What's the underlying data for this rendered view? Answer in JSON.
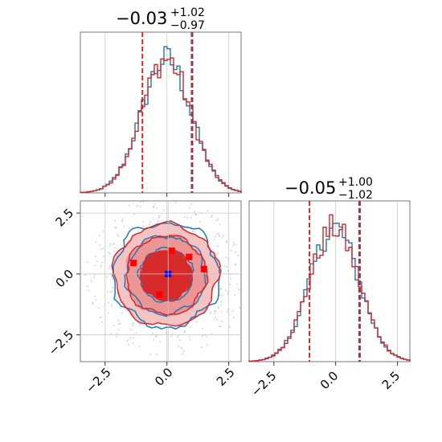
{
  "chart_data": {
    "type": "corner",
    "colors": {
      "series_a": "#1f77b4",
      "series_b": "#d62728",
      "grid": "#c8c8c8",
      "axes": "#777777",
      "median_line": "#8a3a52"
    },
    "panels": [
      {
        "id": "hist-x",
        "type": "histogram",
        "title": {
          "main": "−0.03",
          "sup": "+1.02",
          "sub": "−0.97"
        },
        "xlim": [
          -3.5,
          3.0
        ],
        "quantile_lines_red": [
          -0.99,
          1.0
        ],
        "quantile_lines_median": [
          1.0
        ],
        "grid_x": [
          -2.5,
          0.0,
          2.5
        ],
        "series": [
          {
            "name": "",
            "color": "#1f77b4",
            "shape": "gaussian",
            "mu": -0.03,
            "sigma": 1.0
          },
          {
            "name": "",
            "color": "#d62728",
            "shape": "gaussian",
            "mu": -0.03,
            "sigma": 1.0
          }
        ]
      },
      {
        "id": "scatter-xy",
        "type": "contour",
        "xlim": [
          -3.5,
          3.0
        ],
        "ylim": [
          -3.6,
          3.0
        ],
        "x_ticks": [
          "−2.5",
          "0.0",
          "2.5"
        ],
        "y_ticks": [
          "2.5",
          "0.0",
          "−2.5"
        ],
        "x_tick_values": [
          -2.5,
          0.0,
          2.5
        ],
        "y_tick_values": [
          2.5,
          0.0,
          -2.5
        ],
        "levels_sigma": [
          1.0,
          1.6,
          2.1
        ],
        "red_markers": [
          [
            -1.35,
            0.45
          ],
          [
            0.2,
            0.95
          ],
          [
            0.9,
            0.7
          ],
          [
            1.5,
            0.2
          ],
          [
            -0.3,
            -0.85
          ]
        ],
        "blue_markers": [
          [
            0.05,
            0.0
          ]
        ]
      },
      {
        "id": "hist-y",
        "type": "histogram",
        "title": {
          "main": "−0.05",
          "sup": "+1.00",
          "sub": "−1.02"
        },
        "xlim": [
          -3.5,
          3.0
        ],
        "x_ticks": [
          "−2.5",
          "0.0",
          "2.5"
        ],
        "x_tick_values": [
          -2.5,
          0.0,
          2.5
        ],
        "quantile_lines_red": [
          -1.06,
          0.95
        ],
        "quantile_lines_median": [
          0.95
        ],
        "series": [
          {
            "name": "",
            "color": "#1f77b4",
            "shape": "gaussian",
            "mu": -0.05,
            "sigma": 1.0
          },
          {
            "name": "",
            "color": "#d62728",
            "shape": "gaussian",
            "mu": -0.05,
            "sigma": 1.0
          }
        ]
      }
    ]
  }
}
